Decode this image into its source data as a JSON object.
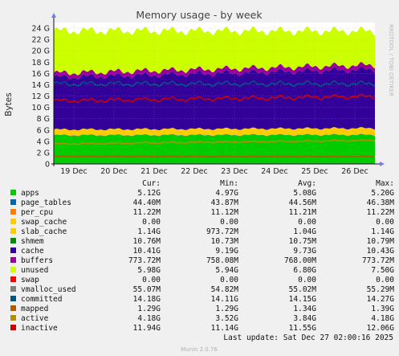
{
  "chart_data": {
    "type": "area",
    "title": "Memory usage - by week",
    "ylabel": "Bytes",
    "side_label": "RRDTOOL / TOBI OETIKER",
    "ylim": [
      0,
      25
    ],
    "y_unit": "G",
    "y_ticks": [
      "0",
      "2 G",
      "4 G",
      "6 G",
      "8 G",
      "10 G",
      "12 G",
      "14 G",
      "16 G",
      "18 G",
      "20 G",
      "22 G",
      "24 G"
    ],
    "x_ticks": [
      "19 Dec",
      "20 Dec",
      "21 Dec",
      "22 Dec",
      "23 Dec",
      "24 Dec",
      "25 Dec",
      "26 Dec"
    ],
    "grid": true,
    "legend_header": {
      "cur": "Cur:",
      "min": "Min:",
      "avg": "Avg:",
      "max": "Max:"
    },
    "series": [
      {
        "name": "apps",
        "color": "#00cc00",
        "cur": "5.12G",
        "min": "4.97G",
        "avg": "5.08G",
        "max": "5.20G",
        "start": 5.05,
        "end": 5.12
      },
      {
        "name": "page_tables",
        "color": "#0066b3",
        "cur": "44.40M",
        "min": "43.87M",
        "avg": "44.56M",
        "max": "46.38M",
        "start": 0.044,
        "end": 0.044
      },
      {
        "name": "per_cpu",
        "color": "#ff8000",
        "cur": "11.22M",
        "min": "11.12M",
        "avg": "11.21M",
        "max": "11.22M",
        "start": 0.011,
        "end": 0.011
      },
      {
        "name": "swap_cache",
        "color": "#ffcc00",
        "cur": "0.00",
        "min": "0.00",
        "avg": "0.00",
        "max": "0.00",
        "start": 0.0,
        "end": 0.0
      },
      {
        "name": "slab_cache",
        "color": "#ffcc00",
        "cur": "1.14G",
        "min": "973.72M",
        "avg": "1.04G",
        "max": "1.14G",
        "start": 0.97,
        "end": 1.14
      },
      {
        "name": "shmem",
        "color": "#008f00",
        "cur": "10.76M",
        "min": "10.73M",
        "avg": "10.75M",
        "max": "10.79M",
        "start": 0.011,
        "end": 0.011
      },
      {
        "name": "cache",
        "color": "#330099",
        "cur": "10.41G",
        "min": "9.19G",
        "avg": "9.73G",
        "max": "10.43G",
        "start": 9.19,
        "end": 10.41
      },
      {
        "name": "buffers",
        "color": "#990099",
        "cur": "773.72M",
        "min": "758.08M",
        "avg": "768.00M",
        "max": "773.72M",
        "start": 0.76,
        "end": 0.77
      },
      {
        "name": "unused",
        "color": "#ccff00",
        "cur": "5.98G",
        "min": "5.94G",
        "avg": "6.80G",
        "max": "7.50G",
        "start": 7.5,
        "end": 5.98
      },
      {
        "name": "swap",
        "color": "#ff0000",
        "cur": "0.00",
        "min": "0.00",
        "avg": "0.00",
        "max": "0.00",
        "start": 0.0,
        "end": 0.0
      },
      {
        "name": "vmalloc_used",
        "color": "#808080",
        "cur": "55.07M",
        "min": "54.82M",
        "avg": "55.02M",
        "max": "55.29M",
        "start": 0.055,
        "end": 0.055
      },
      {
        "name": "committed",
        "color": "#005580",
        "cur": "14.18G",
        "min": "14.11G",
        "avg": "14.15G",
        "max": "14.27G",
        "start": 14.15,
        "end": 14.18
      },
      {
        "name": "mapped",
        "color": "#b35900",
        "cur": "1.29G",
        "min": "1.29G",
        "avg": "1.34G",
        "max": "1.39G",
        "start": 1.34,
        "end": 1.29
      },
      {
        "name": "active",
        "color": "#b38f00",
        "cur": "4.18G",
        "min": "3.52G",
        "avg": "3.84G",
        "max": "4.18G",
        "start": 3.52,
        "end": 4.18
      },
      {
        "name": "inactive",
        "color": "#cc0000",
        "cur": "11.94G",
        "min": "11.14G",
        "avg": "11.55G",
        "max": "12.06G",
        "start": 11.14,
        "end": 11.94
      }
    ]
  },
  "footer": {
    "last_update": "Last update: Sat Dec 27 02:00:16 2025",
    "version": "Munin 2.0.76"
  }
}
